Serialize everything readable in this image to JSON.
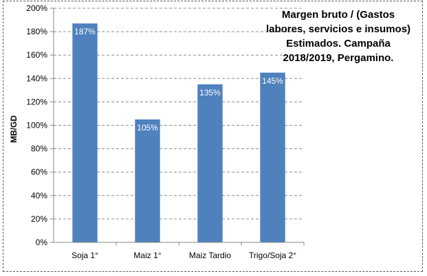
{
  "chart_data": {
    "type": "bar",
    "title": "Margen bruto / (Gastos labores, servicios e insumos) Estimados. Campaña 2018/2019, Pergamino.",
    "title_lines": [
      "Margen bruto / (Gastos",
      "labores, servicios e insumos)",
      "Estimados. Campaña",
      "2018/2019, Pergamino."
    ],
    "xlabel": "",
    "ylabel": "MB/GD",
    "categories": [
      "Soja 1°",
      "Maiz 1°",
      "Maiz Tardio",
      "Trigo/Soja 2°"
    ],
    "values": [
      187,
      105,
      135,
      145
    ],
    "data_labels": [
      "187%",
      "105%",
      "135%",
      "145%"
    ],
    "ylim": [
      0,
      200
    ],
    "yticks": [
      "0%",
      "20%",
      "40%",
      "60%",
      "80%",
      "100%",
      "120%",
      "140%",
      "160%",
      "180%",
      "200%"
    ],
    "grid": "horizontal dashed",
    "bar_color": "#4f81bd",
    "legend": "none"
  }
}
